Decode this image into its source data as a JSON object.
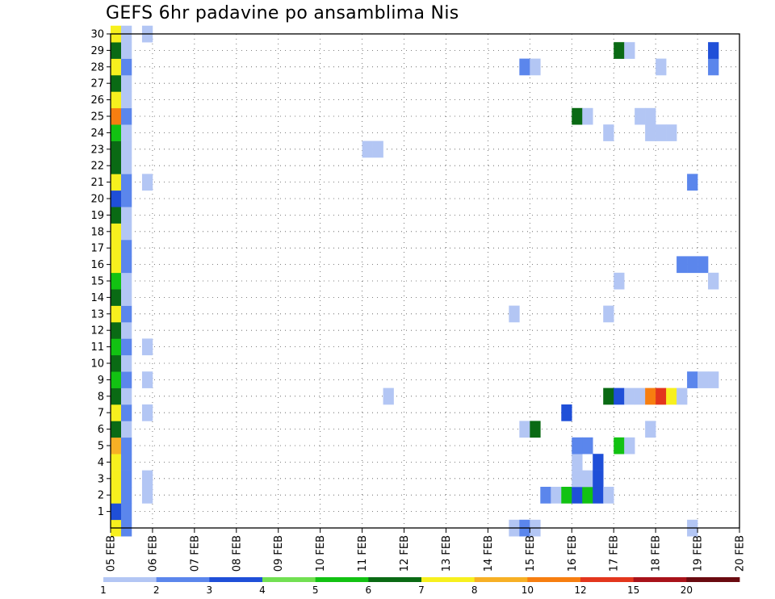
{
  "title": "GEFS 6hr padavine po ansamblima Nis",
  "chart_data": {
    "type": "heatmap",
    "title": "GEFS 6hr padavine po ansamblima Nis",
    "x_ticks": [
      "05 FEB",
      "06 FEB",
      "07 FEB",
      "08 FEB",
      "09 FEB",
      "10 FEB",
      "11 FEB",
      "12 FEB",
      "13 FEB",
      "14 FEB",
      "15 FEB",
      "16 FEB",
      "17 FEB",
      "18 FEB",
      "19 FEB",
      "20 FEB"
    ],
    "x_range": [
      "05 FEB",
      "20 FEB"
    ],
    "x_step_hours": 6,
    "y_ticks": [
      1,
      2,
      3,
      4,
      5,
      6,
      7,
      8,
      9,
      10,
      11,
      12,
      13,
      14,
      15,
      16,
      17,
      18,
      19,
      20,
      21,
      22,
      23,
      24,
      25,
      26,
      27,
      28,
      29,
      30
    ],
    "y_range": [
      0,
      30
    ],
    "grid": true,
    "colorbar": {
      "position": "bottom",
      "labels": [
        "1",
        "2",
        "3",
        "4",
        "5",
        "6",
        "7",
        "8",
        "10",
        "12",
        "15",
        "20"
      ],
      "colors": [
        "#b3c6f4",
        "#5b86ec",
        "#1f4fd8",
        "#72e052",
        "#12c212",
        "#0a6a14",
        "#f7f01e",
        "#f7b025",
        "#f77e10",
        "#e3361d",
        "#a8121a",
        "#6a0a10"
      ]
    },
    "cells": [
      [
        0,
        0,
        7
      ],
      [
        0,
        1,
        3
      ],
      [
        0,
        2,
        7
      ],
      [
        0,
        3,
        7
      ],
      [
        0,
        4,
        7
      ],
      [
        0,
        5,
        8
      ],
      [
        0,
        6,
        6
      ],
      [
        0,
        7,
        7
      ],
      [
        0,
        8,
        6
      ],
      [
        0,
        9,
        5
      ],
      [
        0,
        10,
        6
      ],
      [
        0,
        11,
        5
      ],
      [
        0,
        12,
        6
      ],
      [
        0,
        13,
        7
      ],
      [
        0,
        14,
        6
      ],
      [
        0,
        15,
        5
      ],
      [
        0,
        16,
        7
      ],
      [
        0,
        17,
        7
      ],
      [
        0,
        18,
        7
      ],
      [
        0,
        19,
        6
      ],
      [
        0,
        20,
        3
      ],
      [
        0,
        21,
        7
      ],
      [
        0,
        22,
        6
      ],
      [
        0,
        23,
        6
      ],
      [
        0,
        24,
        5
      ],
      [
        0,
        25,
        9
      ],
      [
        0,
        26,
        7
      ],
      [
        0,
        27,
        6
      ],
      [
        0,
        28,
        7
      ],
      [
        0,
        29,
        6
      ],
      [
        0,
        30,
        7
      ],
      [
        1,
        0,
        2
      ],
      [
        1,
        1,
        2
      ],
      [
        1,
        2,
        2
      ],
      [
        1,
        3,
        2
      ],
      [
        1,
        4,
        2
      ],
      [
        1,
        5,
        2
      ],
      [
        1,
        6,
        1
      ],
      [
        1,
        7,
        2
      ],
      [
        1,
        8,
        1
      ],
      [
        1,
        9,
        2
      ],
      [
        1,
        10,
        1
      ],
      [
        1,
        11,
        2
      ],
      [
        1,
        12,
        1
      ],
      [
        1,
        13,
        2
      ],
      [
        1,
        14,
        1
      ],
      [
        1,
        15,
        1
      ],
      [
        1,
        16,
        2
      ],
      [
        1,
        17,
        2
      ],
      [
        1,
        18,
        1
      ],
      [
        1,
        19,
        1
      ],
      [
        1,
        20,
        2
      ],
      [
        1,
        21,
        2
      ],
      [
        1,
        22,
        1
      ],
      [
        1,
        23,
        1
      ],
      [
        1,
        24,
        1
      ],
      [
        1,
        25,
        2
      ],
      [
        1,
        26,
        1
      ],
      [
        1,
        27,
        1
      ],
      [
        1,
        28,
        2
      ],
      [
        1,
        29,
        1
      ],
      [
        1,
        30,
        1
      ],
      [
        3,
        2,
        1
      ],
      [
        3,
        3,
        1
      ],
      [
        3,
        7,
        1
      ],
      [
        3,
        9,
        1
      ],
      [
        3,
        11,
        1
      ],
      [
        3,
        21,
        1
      ],
      [
        3,
        30,
        1
      ],
      [
        24,
        23,
        1
      ],
      [
        25,
        23,
        1
      ],
      [
        26,
        8,
        1
      ],
      [
        38,
        0,
        1
      ],
      [
        38,
        13,
        1
      ],
      [
        39,
        0,
        2
      ],
      [
        39,
        6,
        1
      ],
      [
        39,
        28,
        2
      ],
      [
        40,
        0,
        1
      ],
      [
        40,
        6,
        6
      ],
      [
        40,
        28,
        1
      ],
      [
        41,
        2,
        2
      ],
      [
        42,
        2,
        1
      ],
      [
        43,
        2,
        5
      ],
      [
        43,
        7,
        3
      ],
      [
        44,
        2,
        3
      ],
      [
        44,
        3,
        1
      ],
      [
        44,
        4,
        1
      ],
      [
        44,
        5,
        2
      ],
      [
        44,
        25,
        6
      ],
      [
        45,
        2,
        5
      ],
      [
        45,
        3,
        1
      ],
      [
        45,
        5,
        2
      ],
      [
        45,
        25,
        1
      ],
      [
        46,
        2,
        3
      ],
      [
        46,
        3,
        3
      ],
      [
        46,
        4,
        3
      ],
      [
        47,
        2,
        1
      ],
      [
        47,
        8,
        6
      ],
      [
        47,
        13,
        1
      ],
      [
        47,
        24,
        1
      ],
      [
        48,
        5,
        5
      ],
      [
        48,
        8,
        3
      ],
      [
        48,
        15,
        1
      ],
      [
        48,
        29,
        6
      ],
      [
        49,
        5,
        1
      ],
      [
        49,
        8,
        1
      ],
      [
        49,
        29,
        1
      ],
      [
        50,
        8,
        1
      ],
      [
        50,
        25,
        1
      ],
      [
        51,
        6,
        1
      ],
      [
        51,
        8,
        9
      ],
      [
        51,
        24,
        1
      ],
      [
        51,
        25,
        1
      ],
      [
        52,
        8,
        10
      ],
      [
        52,
        24,
        1
      ],
      [
        52,
        28,
        1
      ],
      [
        53,
        8,
        7
      ],
      [
        53,
        24,
        1
      ],
      [
        54,
        8,
        1
      ],
      [
        54,
        16,
        2
      ],
      [
        55,
        0,
        1
      ],
      [
        55,
        9,
        2
      ],
      [
        55,
        16,
        2
      ],
      [
        55,
        21,
        2
      ],
      [
        56,
        9,
        1
      ],
      [
        56,
        16,
        2
      ],
      [
        57,
        9,
        1
      ],
      [
        57,
        15,
        1
      ],
      [
        57,
        28,
        2
      ],
      [
        57,
        29,
        3
      ]
    ]
  }
}
